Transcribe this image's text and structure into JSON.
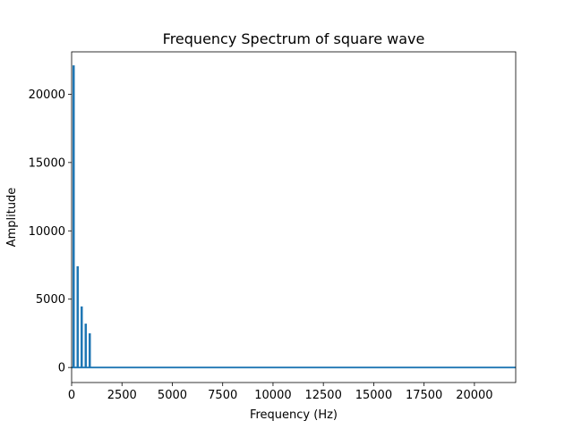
{
  "chart_data": {
    "type": "line",
    "title": "Frequency Spectrum of square wave",
    "xlabel": "Frequency (Hz)",
    "ylabel": "Amplitude",
    "xlim": [
      0,
      22050
    ],
    "ylim": [
      -1100,
      23100
    ],
    "x_ticks": [
      0,
      2500,
      5000,
      7500,
      10000,
      12500,
      15000,
      17500,
      20000
    ],
    "x_tick_labels": [
      "0",
      "2500",
      "5000",
      "7500",
      "10000",
      "12500",
      "15000",
      "17500",
      "20000"
    ],
    "y_ticks": [
      0,
      5000,
      10000,
      15000,
      20000
    ],
    "y_tick_labels": [
      "0",
      "5000",
      "10000",
      "15000",
      "20000"
    ],
    "grid": false,
    "series": [
      {
        "color": "#1f77b4",
        "peaks": [
          {
            "x": 100,
            "y": 22050
          },
          {
            "x": 300,
            "y": 7350
          },
          {
            "x": 500,
            "y": 4410
          },
          {
            "x": 700,
            "y": 3150
          },
          {
            "x": 900,
            "y": 2450
          }
        ],
        "baseline": 0
      }
    ]
  }
}
